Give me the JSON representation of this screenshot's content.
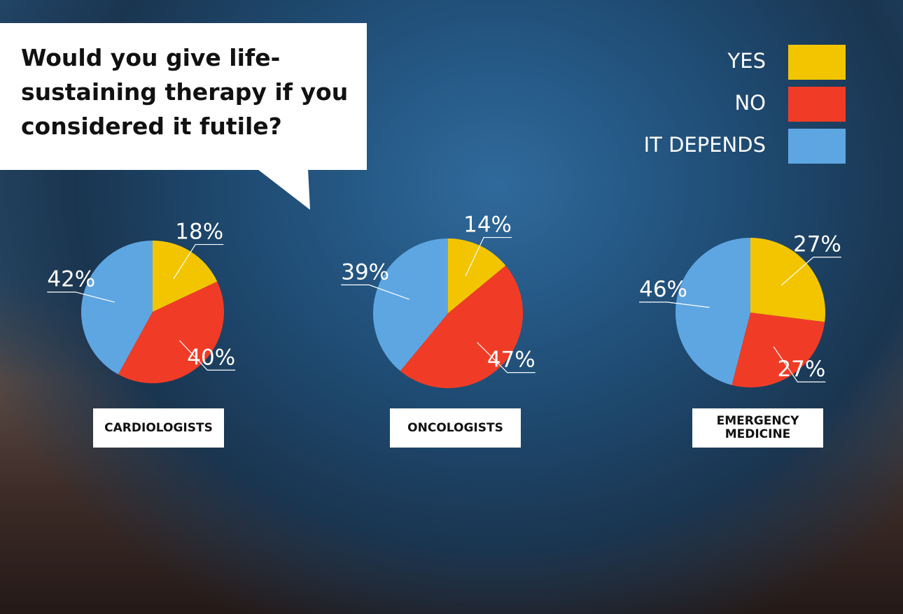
{
  "question": "Would you give life-sustaining therapy if you considered it futile?",
  "legend": [
    {
      "name": "YES",
      "color": "#f2c500"
    },
    {
      "name": "NO",
      "color": "#f03c26"
    },
    {
      "name": "IT DEPENDS",
      "color": "#5ea6e2"
    }
  ],
  "chart_data": [
    {
      "type": "pie",
      "title": "CARDIOLOGISTS",
      "values": [
        18,
        40,
        42
      ],
      "value_labels": [
        "18%",
        "40%",
        "42%"
      ]
    },
    {
      "type": "pie",
      "title": "ONCOLOGISTS",
      "values": [
        14,
        47,
        39
      ],
      "value_labels": [
        "14%",
        "47%",
        "39%"
      ]
    },
    {
      "type": "pie",
      "title": "EMERGENCY MEDICINE",
      "values": [
        27,
        27,
        46
      ],
      "value_labels": [
        "27%",
        "27%",
        "46%"
      ]
    }
  ]
}
